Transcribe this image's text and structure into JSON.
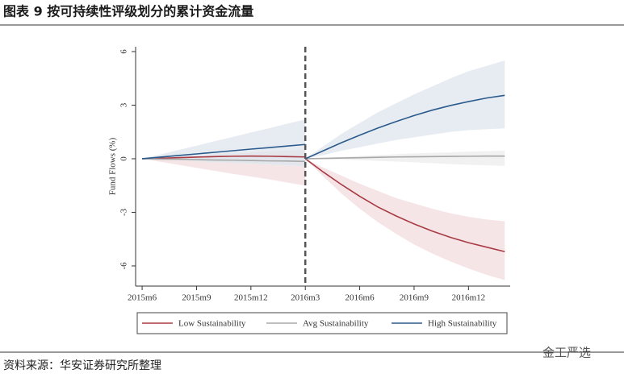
{
  "header": {
    "title": "图表 9 按可持续性评级划分的累计资金流量"
  },
  "chart_data": {
    "type": "line",
    "ylabel": "Fund Flows (%)",
    "x": [
      0,
      1,
      2,
      3,
      4,
      5,
      6,
      7,
      8,
      9,
      9,
      9,
      10,
      11,
      12,
      13,
      14,
      15,
      16,
      17,
      18,
      19,
      20
    ],
    "xlim": [
      -0.36,
      20.3
    ],
    "xticks": [
      {
        "value": 0,
        "label": "2015m6"
      },
      {
        "value": 3,
        "label": "2015m9"
      },
      {
        "value": 6,
        "label": "2015m12"
      },
      {
        "value": 9,
        "label": "2016m3"
      },
      {
        "value": 12,
        "label": "2016m6"
      },
      {
        "value": 15,
        "label": "2016m9"
      },
      {
        "value": 18,
        "label": "2016m12"
      }
    ],
    "ylim": [
      -7.13,
      6.27
    ],
    "yticks": [
      {
        "value": -6,
        "label": "-6"
      },
      {
        "value": -3,
        "label": "-3"
      },
      {
        "value": 0,
        "label": "0"
      },
      {
        "value": 3,
        "label": "3"
      },
      {
        "value": 6,
        "label": "6"
      }
    ],
    "vline": 9,
    "series": [
      {
        "name": "Low Sustainability",
        "color": "#a83a44",
        "band_color": "#f2dcdd",
        "values": [
          0,
          0.03,
          0.06,
          0.09,
          0.12,
          0.14,
          0.15,
          0.14,
          0.12,
          0.1,
          null,
          0,
          -0.75,
          -1.45,
          -2.1,
          -2.7,
          -3.2,
          -3.65,
          -4.05,
          -4.4,
          -4.7,
          -4.95,
          -5.2
        ],
        "upper": [
          0,
          0.06,
          0.12,
          0.18,
          0.24,
          0.3,
          0.36,
          0.41,
          0.46,
          0.5,
          null,
          0,
          -0.5,
          -0.95,
          -1.4,
          -1.8,
          -2.2,
          -2.5,
          -2.8,
          -3.05,
          -3.25,
          -3.4,
          -3.5
        ],
        "lower": [
          0,
          -0.17,
          -0.34,
          -0.51,
          -0.68,
          -0.85,
          -1.0,
          -1.15,
          -1.33,
          -1.5,
          null,
          0,
          -1.0,
          -1.95,
          -2.8,
          -3.55,
          -4.2,
          -4.8,
          -5.3,
          -5.75,
          -6.15,
          -6.5,
          -6.8
        ]
      },
      {
        "name": "Avg Sustainability",
        "color": "#a8a8a8",
        "band_color": "#ececec",
        "values": [
          0,
          -0.02,
          -0.03,
          -0.05,
          -0.07,
          -0.08,
          -0.1,
          -0.12,
          -0.13,
          -0.15,
          null,
          0,
          0.02,
          0.04,
          0.06,
          0.08,
          0.1,
          0.11,
          0.12,
          0.13,
          0.14,
          0.15,
          0.15
        ],
        "upper": [
          0,
          0.02,
          0.04,
          0.06,
          0.08,
          0.09,
          0.1,
          0.11,
          0.12,
          0.13,
          null,
          0,
          0.05,
          0.1,
          0.15,
          0.2,
          0.25,
          0.3,
          0.33,
          0.36,
          0.4,
          0.42,
          0.45
        ],
        "lower": [
          0,
          -0.05,
          -0.1,
          -0.15,
          -0.2,
          -0.25,
          -0.3,
          -0.35,
          -0.4,
          -0.43,
          null,
          0,
          -0.02,
          -0.05,
          -0.08,
          -0.12,
          -0.16,
          -0.2,
          -0.25,
          -0.3,
          -0.34,
          -0.37,
          -0.4
        ]
      },
      {
        "name": "High Sustainability",
        "color": "#2b5a8c",
        "band_color": "#dfe6ee",
        "values": [
          0,
          0.09,
          0.18,
          0.27,
          0.36,
          0.45,
          0.54,
          0.62,
          0.71,
          0.8,
          null,
          0,
          0.45,
          0.9,
          1.32,
          1.72,
          2.08,
          2.42,
          2.72,
          2.98,
          3.2,
          3.4,
          3.55
        ],
        "upper": [
          0,
          0.24,
          0.49,
          0.73,
          0.98,
          1.22,
          1.47,
          1.71,
          1.96,
          2.2,
          null,
          0,
          0.7,
          1.4,
          2.0,
          2.6,
          3.1,
          3.6,
          4.05,
          4.5,
          4.9,
          5.2,
          5.5
        ],
        "lower": [
          0,
          -0.04,
          -0.09,
          -0.13,
          -0.18,
          -0.22,
          -0.27,
          -0.31,
          -0.36,
          -0.4,
          null,
          0,
          0.2,
          0.45,
          0.65,
          0.85,
          1.05,
          1.2,
          1.35,
          1.5,
          1.6,
          1.65,
          1.7
        ]
      }
    ]
  },
  "footer": {
    "source": "资料来源：华安证券研究所整理",
    "watermark": "金工严选"
  }
}
